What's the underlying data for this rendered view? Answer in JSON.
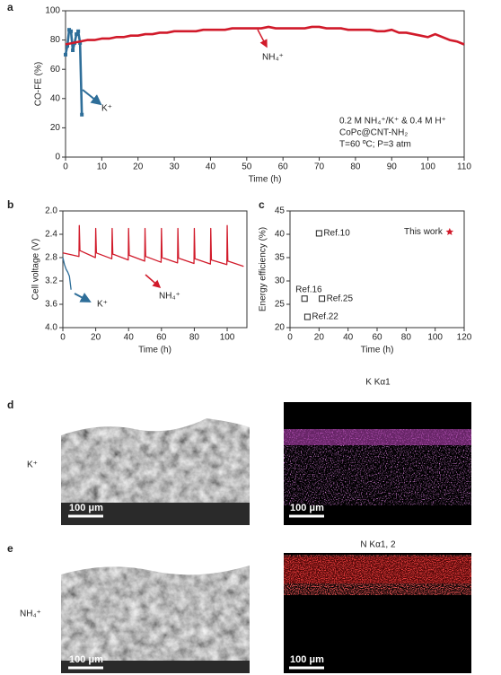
{
  "chart_data": [
    {
      "type": "line",
      "xlabel": "Time (h)",
      "ylabel": "CO-FE (%)",
      "xlim": [
        0,
        110
      ],
      "xticks": [
        0,
        10,
        20,
        30,
        40,
        50,
        60,
        70,
        80,
        90,
        100,
        110
      ],
      "ylim": [
        0,
        100
      ],
      "yticks": [
        0,
        20,
        40,
        60,
        80,
        100
      ],
      "annotations": [
        "0.2 M NH₄⁺/K⁺ & 0.4 M H⁺",
        "CoPc@CNT-NH₂",
        "T=60 ºC; P=3 atm"
      ],
      "series": [
        {
          "name": "K⁺",
          "color": "#2e6e99",
          "marker": "square",
          "x": [
            0,
            0.5,
            1,
            1.5,
            2,
            2.5,
            3,
            3.5,
            4,
            4.5
          ],
          "values": [
            70,
            76,
            87,
            86,
            73,
            78,
            84,
            86,
            78,
            29
          ]
        },
        {
          "name": "NH₄⁺",
          "color": "#d11a2a",
          "marker": "none",
          "x": [
            0,
            2,
            4,
            6,
            8,
            10,
            12,
            14,
            16,
            18,
            20,
            22,
            24,
            26,
            28,
            30,
            32,
            34,
            36,
            38,
            40,
            42,
            44,
            46,
            48,
            50,
            52,
            54,
            56,
            58,
            60,
            62,
            64,
            66,
            68,
            70,
            72,
            74,
            76,
            78,
            80,
            82,
            84,
            86,
            88,
            90,
            92,
            94,
            96,
            98,
            100,
            102,
            104,
            106,
            108,
            110
          ],
          "values": [
            77,
            78,
            79,
            80,
            80,
            81,
            81,
            82,
            82,
            83,
            83,
            84,
            84,
            85,
            85,
            86,
            86,
            86,
            86,
            87,
            87,
            87,
            87,
            88,
            88,
            88,
            88,
            88,
            89,
            88,
            88,
            88,
            88,
            88,
            89,
            89,
            88,
            88,
            88,
            87,
            87,
            87,
            87,
            86,
            86,
            87,
            85,
            85,
            84,
            83,
            82,
            84,
            82,
            80,
            79,
            77
          ]
        }
      ]
    },
    {
      "type": "line",
      "xlabel": "Time (h)",
      "ylabel": "Cell voltage (V)",
      "xlim": [
        0,
        112
      ],
      "xticks": [
        0,
        20,
        40,
        60,
        80,
        100
      ],
      "ylim": [
        4.0,
        2.0
      ],
      "yticks": [
        {
          "value": 2.0,
          "label": "2.0"
        },
        2.4,
        2.8,
        3.2,
        3.6,
        {
          "value": 4.0,
          "label": "4.0"
        }
      ],
      "series": [
        {
          "name": "K⁺",
          "color": "#2e6e99",
          "marker": "none",
          "x": [
            0,
            1,
            2,
            3,
            4,
            5
          ],
          "values": [
            2.8,
            2.92,
            3.0,
            3.05,
            3.12,
            3.35
          ]
        },
        {
          "name": "NH₄⁺",
          "color": "#d11a2a",
          "marker": "none",
          "x": [
            0,
            5,
            9.8,
            10,
            10.4,
            19.8,
            20,
            20.4,
            29.8,
            30,
            30.4,
            39.8,
            40,
            40.4,
            49.8,
            50,
            50.4,
            59.8,
            60,
            60.4,
            69.8,
            70,
            70.4,
            79.8,
            80,
            80.4,
            89.8,
            90,
            90.4,
            99.8,
            100,
            100.4,
            110
          ],
          "values": [
            2.72,
            2.75,
            2.78,
            2.25,
            2.68,
            2.8,
            2.3,
            2.72,
            2.82,
            2.3,
            2.74,
            2.84,
            2.3,
            2.76,
            2.86,
            2.3,
            2.78,
            2.88,
            2.3,
            2.8,
            2.89,
            2.3,
            2.81,
            2.9,
            2.3,
            2.82,
            2.91,
            2.3,
            2.84,
            2.92,
            2.25,
            2.86,
            2.95
          ]
        }
      ]
    },
    {
      "type": "scatter",
      "xlabel": "Time (h)",
      "ylabel": "Energy efficiency (%)",
      "xlim": [
        0,
        120
      ],
      "xticks": [
        0,
        20,
        40,
        60,
        80,
        100,
        120
      ],
      "ylim": [
        20,
        45
      ],
      "yticks": [
        20,
        25,
        30,
        35,
        40,
        45
      ],
      "points": [
        {
          "label": "Ref.10",
          "x": 20,
          "y": 40.2,
          "color": "#222222",
          "marker": "square"
        },
        {
          "label": "Ref.16",
          "x": 10,
          "y": 26.2,
          "color": "#222222",
          "marker": "square"
        },
        {
          "label": "Ref.25",
          "x": 22,
          "y": 26.2,
          "color": "#222222",
          "marker": "square"
        },
        {
          "label": "Ref.22",
          "x": 12,
          "y": 22.3,
          "color": "#222222",
          "marker": "square"
        },
        {
          "label": "This work",
          "x": 110,
          "y": 40.5,
          "color": "#d11a2a",
          "marker": "star"
        }
      ]
    }
  ],
  "panel_letters": [
    "a",
    "b",
    "c",
    "d",
    "e"
  ],
  "images": {
    "d": {
      "row_label": "K⁺",
      "map_title": "K Kα1",
      "scale_left": "100 μm",
      "scale_right": "100 μm"
    },
    "e": {
      "row_label": "NH₄⁺",
      "map_title": "N Kα1, 2",
      "scale_left": "100 μm",
      "scale_right": "100 μm"
    }
  }
}
